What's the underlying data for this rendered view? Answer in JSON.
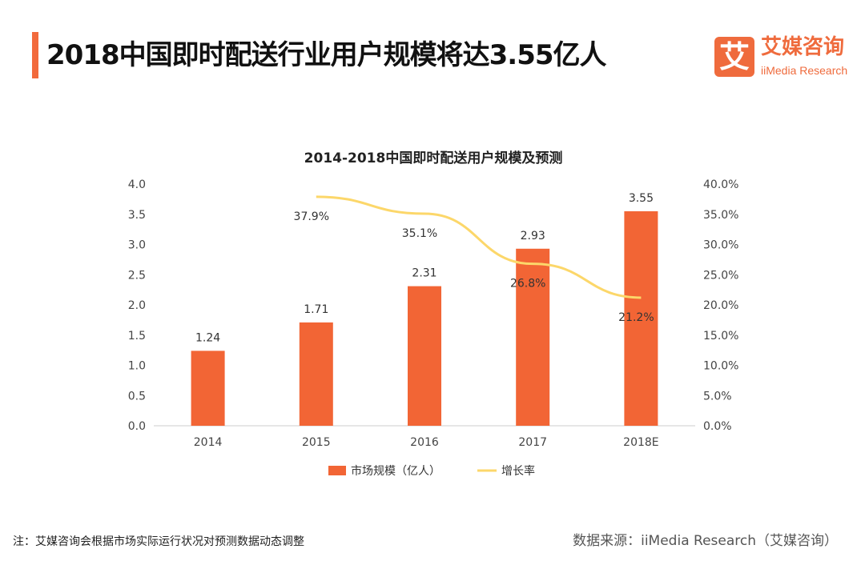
{
  "header": {
    "title": "2018中国即时配送行业用户规模将达3.55亿人"
  },
  "logo": {
    "mark": "艾",
    "name_cn": "艾媒咨询",
    "name_en": "iiMedia Research"
  },
  "footer": {
    "note": "注：艾媒咨询会根据市场实际运行状况对预测数据动态调整",
    "source": "数据来源：iiMedia Research（艾媒咨询）"
  },
  "colors": {
    "bar": "#f26535",
    "line": "#fcd76a",
    "accent": "#f26a3c"
  },
  "chart_data": {
    "type": "bar",
    "title": "2014-2018中国即时配送用户规模及预测",
    "categories": [
      "2014",
      "2015",
      "2016",
      "2017",
      "2018E"
    ],
    "series": [
      {
        "name": "市场规模（亿人）",
        "type": "bar",
        "axis": "left",
        "values": [
          1.24,
          1.71,
          2.31,
          2.93,
          3.55
        ],
        "labels": [
          "1.24",
          "1.71",
          "2.31",
          "2.93",
          "3.55"
        ]
      },
      {
        "name": "增长率",
        "type": "line",
        "axis": "right",
        "values": [
          null,
          37.9,
          35.1,
          26.8,
          21.2
        ],
        "labels": [
          "",
          "37.9%",
          "35.1%",
          "26.8%",
          "21.2%"
        ]
      }
    ],
    "ylim": [
      0,
      4.0
    ],
    "yticks": [
      "0.0",
      "0.5",
      "1.0",
      "1.5",
      "2.0",
      "2.5",
      "3.0",
      "3.5",
      "4.0"
    ],
    "y2lim": [
      0,
      40
    ],
    "y2ticks": [
      "0.0%",
      "5.0%",
      "10.0%",
      "15.0%",
      "20.0%",
      "25.0%",
      "30.0%",
      "35.0%",
      "40.0%"
    ],
    "legend": "bottom",
    "grid": false
  }
}
